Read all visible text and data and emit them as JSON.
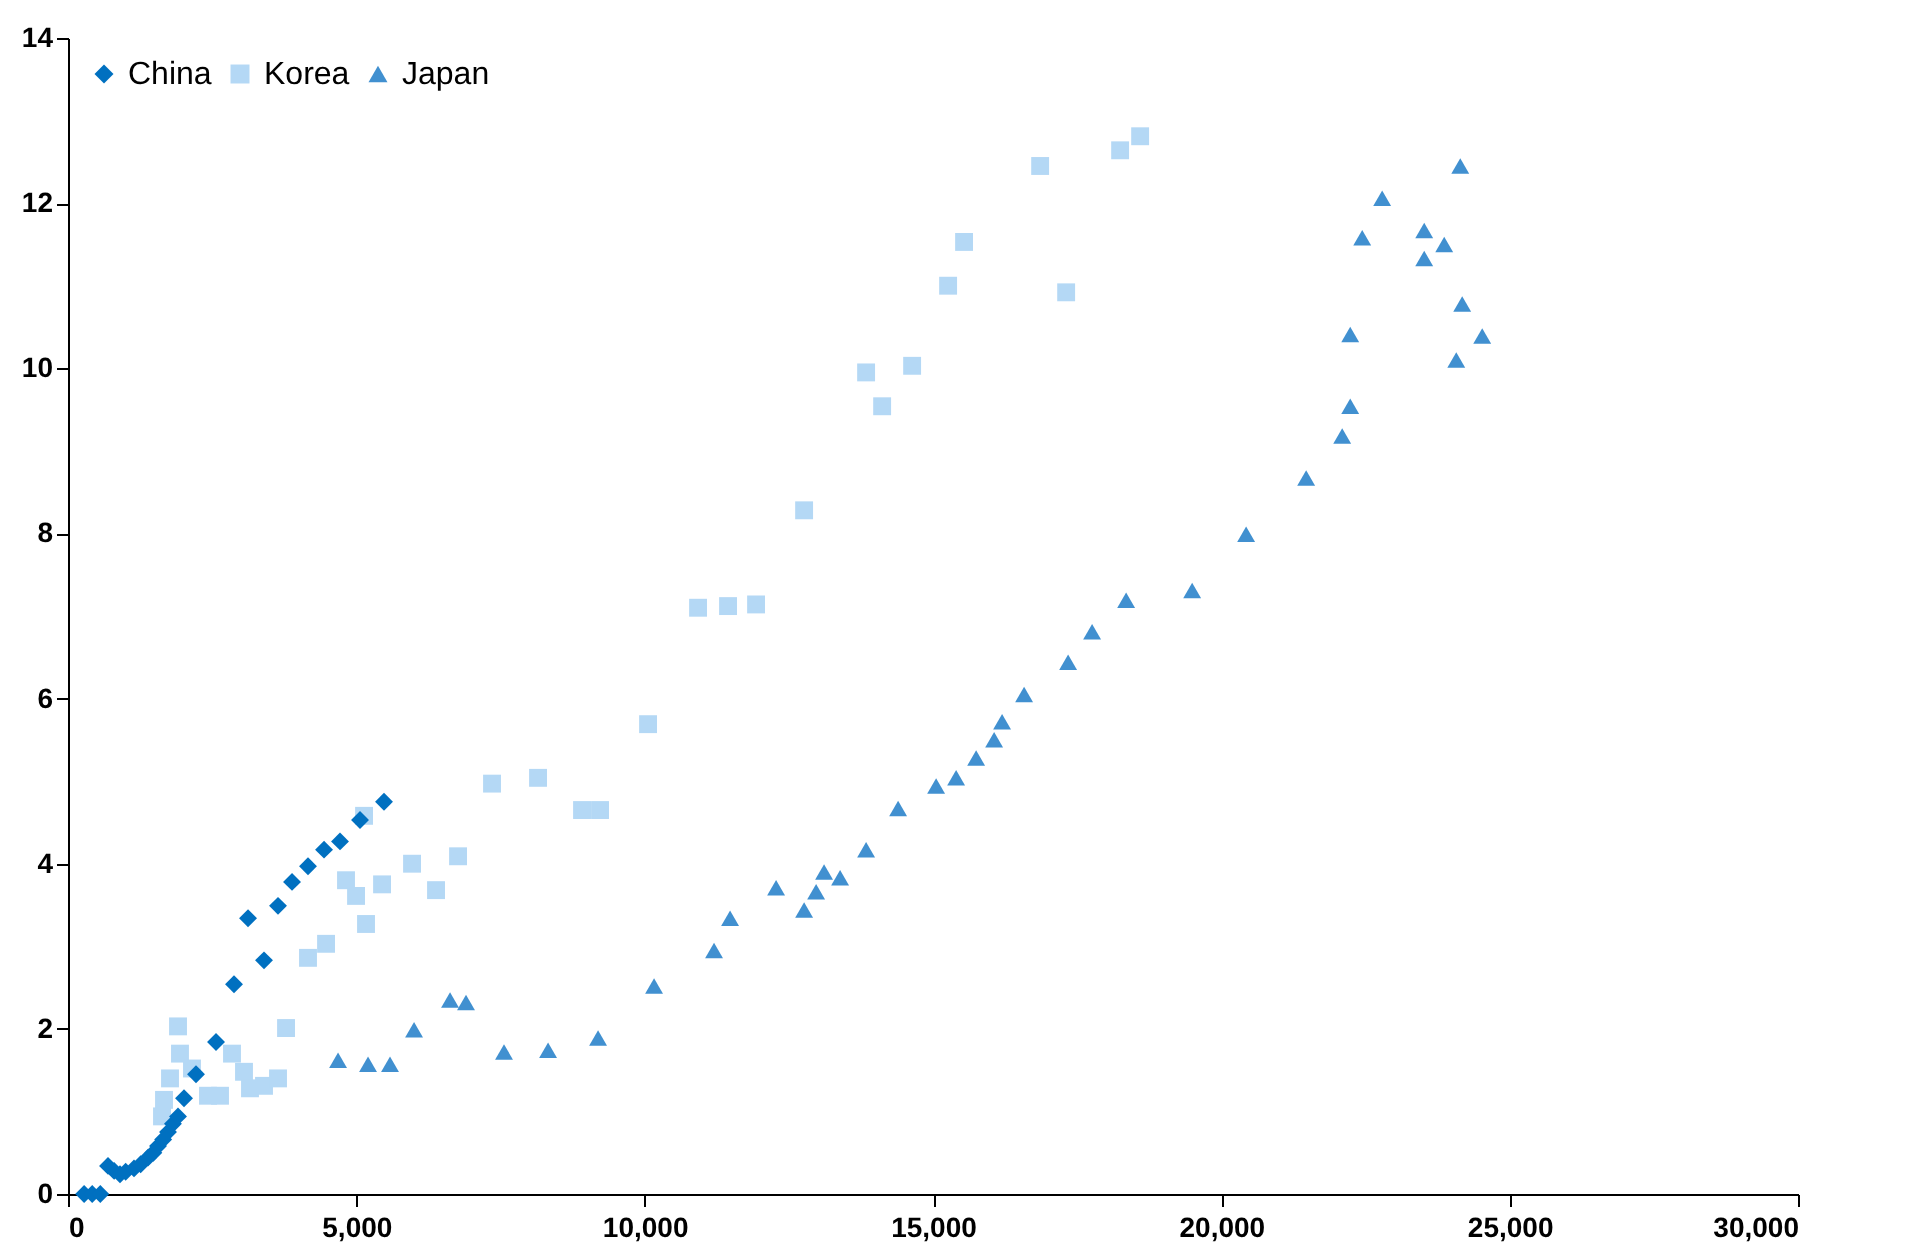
{
  "chart_data": {
    "type": "scatter",
    "legend": "top left",
    "grid": false,
    "xlim": [
      0,
      30000
    ],
    "xticks": [
      {
        "value": 0,
        "label": "0"
      },
      {
        "value": 5000,
        "label": "5,000"
      },
      {
        "value": 10000,
        "label": "10,000"
      },
      {
        "value": 15000,
        "label": "15,000"
      },
      {
        "value": 20000,
        "label": "20,000"
      },
      {
        "value": 25000,
        "label": "25,000"
      },
      {
        "value": 30000,
        "label": "30,000"
      }
    ],
    "ylim": [
      0,
      14
    ],
    "yticks": [
      0,
      2,
      4,
      6,
      8,
      10,
      12,
      14
    ],
    "series": [
      {
        "name": "China",
        "color": "#0070c0",
        "marker": "diamond",
        "x": [
          280,
          420,
          560,
          694,
          800,
          902,
          1000,
          1145,
          1260,
          1387,
          1480,
          1561,
          1650,
          1734,
          1820,
          1908,
          2012,
          2220,
          2567,
          2879,
          3122,
          3399,
          3642,
          3885,
          4162,
          4440,
          4717,
          5064,
          5480
        ],
        "values": [
          0,
          0,
          0,
          0.34,
          0.28,
          0.24,
          0.27,
          0.31,
          0.36,
          0.44,
          0.5,
          0.58,
          0.66,
          0.75,
          0.85,
          0.94,
          1.16,
          1.45,
          1.84,
          2.54,
          3.34,
          2.83,
          3.49,
          3.78,
          3.97,
          4.17,
          4.27,
          4.53,
          4.75
        ]
      },
      {
        "name": "Korea",
        "color": "#b4d8f5",
        "marker": "square",
        "x": [
          1630,
          1665,
          1769,
          1908,
          1942,
          2150,
          2428,
          2636,
          2844,
          3052,
          3156,
          3399,
          3642,
          3781,
          4162,
          4475,
          4821,
          4995,
          5168,
          5134,
          5446,
          5966,
          6382,
          6764,
          7353,
          8151,
          8914,
          9226,
          10059,
          10926,
          11446,
          11932,
          12765,
          13840,
          14118,
          14638,
          15262,
          15539,
          16858,
          17309,
          18245,
          18592
        ],
        "values": [
          0.94,
          1.14,
          1.4,
          2.03,
          1.7,
          1.52,
          1.19,
          1.19,
          1.7,
          1.48,
          1.28,
          1.31,
          1.4,
          2.01,
          2.86,
          3.03,
          3.8,
          3.61,
          3.27,
          4.58,
          3.75,
          4.0,
          3.68,
          4.09,
          4.97,
          5.04,
          4.65,
          4.65,
          5.69,
          7.1,
          7.12,
          7.14,
          8.28,
          9.95,
          9.54,
          10.03,
          11.0,
          11.53,
          12.45,
          10.92,
          12.64,
          12.81
        ]
      },
      {
        "name": "Japan",
        "color": "#4190d0",
        "marker": "triangle",
        "x": [
          4683,
          5203,
          5584,
          6001,
          6625,
          6902,
          7561,
          8325,
          9192,
          10163,
          11203,
          11481,
          12279,
          12765,
          12973,
          13111,
          13389,
          13840,
          14395,
          15054,
          15401,
          15748,
          16060,
          16198,
          16580,
          17343,
          17759,
          18349,
          19494,
          20430,
          21471,
          22096,
          22235,
          22235,
          22443,
          22789,
          23518,
          23518,
          23865,
          24143,
          24177,
          24524,
          24074
        ],
        "values": [
          1.62,
          1.57,
          1.57,
          1.99,
          2.35,
          2.32,
          1.72,
          1.74,
          1.89,
          2.52,
          2.95,
          3.34,
          3.71,
          3.44,
          3.66,
          3.9,
          3.83,
          4.17,
          4.67,
          4.94,
          5.04,
          5.28,
          5.5,
          5.72,
          6.05,
          6.44,
          6.81,
          7.19,
          7.31,
          7.99,
          8.67,
          9.18,
          9.54,
          10.41,
          11.58,
          12.06,
          11.67,
          11.33,
          11.5,
          12.45,
          10.78,
          10.39,
          10.1
        ]
      }
    ]
  }
}
